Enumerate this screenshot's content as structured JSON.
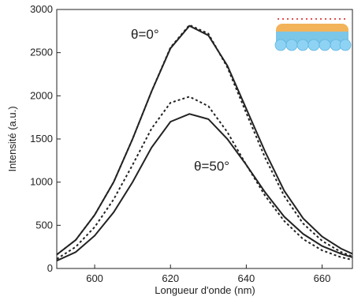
{
  "chart_data": {
    "type": "line",
    "x_label": "Longueur d'onde (nm)",
    "y_label": "Intensité (a.u.)",
    "annotations": [
      "θ=0°",
      "θ=50°"
    ],
    "x": [
      590,
      595,
      600,
      605,
      610,
      615,
      620,
      625,
      630,
      635,
      640,
      645,
      650,
      655,
      660,
      665,
      668
    ],
    "series": [
      {
        "color": "#222222",
        "dash": "solid",
        "values": [
          160,
          330,
          620,
          1000,
          1500,
          2050,
          2550,
          2810,
          2700,
          2350,
          1850,
          1350,
          900,
          580,
          370,
          230,
          170
        ]
      },
      {
        "color": "#222222",
        "dash": "dashed",
        "values": [
          160,
          330,
          620,
          1000,
          1500,
          2050,
          2560,
          2820,
          2720,
          2330,
          1800,
          1280,
          840,
          520,
          320,
          190,
          140
        ]
      },
      {
        "color": "#222222",
        "dash": "solid",
        "values": [
          90,
          190,
          380,
          650,
          1000,
          1400,
          1700,
          1790,
          1730,
          1500,
          1200,
          880,
          600,
          400,
          260,
          170,
          130
        ]
      },
      {
        "color": "#222222",
        "dash": "dashed",
        "values": [
          110,
          250,
          480,
          800,
          1200,
          1620,
          1920,
          1990,
          1880,
          1580,
          1200,
          840,
          550,
          340,
          210,
          130,
          100
        ]
      }
    ],
    "xlim": [
      590,
      668
    ],
    "ylim": [
      0,
      3000
    ],
    "xticks": [
      600,
      620,
      640,
      660
    ],
    "yticks": [
      0,
      500,
      1000,
      1500,
      2000,
      2500,
      3000
    ],
    "grid": false
  }
}
